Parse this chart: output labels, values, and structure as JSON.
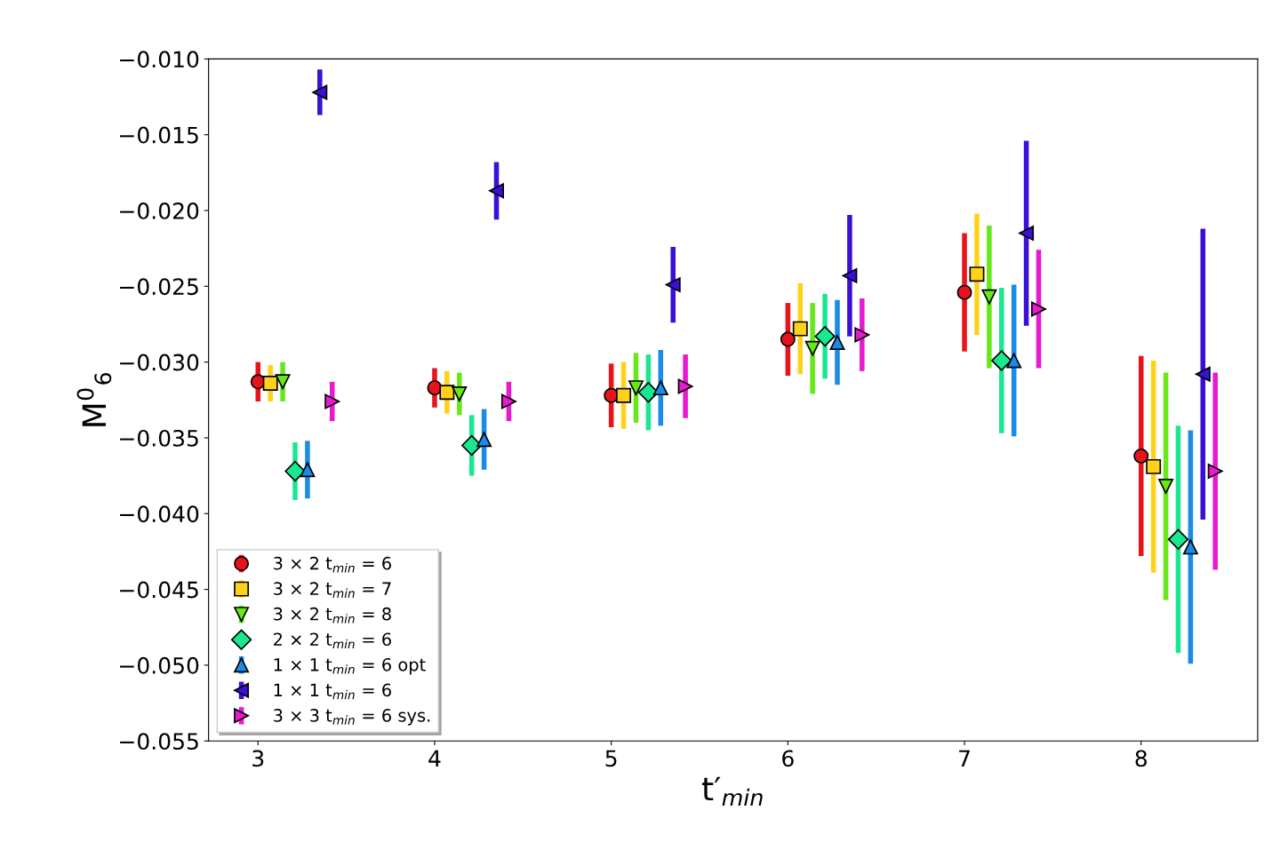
{
  "chart_data": {
    "type": "scatter",
    "xlabel": "t′$_{min}$",
    "ylabel": "M$^{0}$$_{6}$",
    "xlim": [
      2.72,
      8.66
    ],
    "xticks": [
      3,
      4,
      5,
      6,
      7,
      8
    ],
    "ylim": [
      -0.055,
      -0.01
    ],
    "yticks": [
      {
        "value": -0.055,
        "label": "−0.055"
      },
      {
        "value": -0.05,
        "label": "−0.050"
      },
      {
        "value": -0.045,
        "label": "−0.045"
      },
      {
        "value": -0.04,
        "label": "−0.040"
      },
      {
        "value": -0.035,
        "label": "−0.035"
      },
      {
        "value": -0.03,
        "label": "−0.030"
      },
      {
        "value": -0.025,
        "label": "−0.025"
      },
      {
        "value": -0.02,
        "label": "−0.020"
      },
      {
        "value": -0.015,
        "label": "−0.015"
      },
      {
        "value": -0.01,
        "label": "−0.010"
      }
    ],
    "grid": false,
    "legend": "bottom left",
    "series": [
      {
        "name": "3 × 2 t$_{min}$ = 6",
        "color": "#e8141c",
        "marker": "circle",
        "x": [
          3,
          4,
          5,
          6,
          7,
          8
        ],
        "values": [
          -0.0313,
          -0.0317,
          -0.0322,
          -0.0285,
          -0.0254,
          -0.0362
        ],
        "errors": [
          0.0013,
          0.0013,
          0.0021,
          0.0024,
          0.0039,
          0.0066
        ]
      },
      {
        "name": "3 × 2 t$_{min}$ = 7",
        "color": "#ffd21a",
        "marker": "square",
        "x": [
          3.07,
          4.07,
          5.07,
          6.07,
          7.07,
          8.07
        ],
        "values": [
          -0.0314,
          -0.032,
          -0.0322,
          -0.0278,
          -0.0242,
          -0.0369
        ],
        "errors": [
          0.0012,
          0.0014,
          0.0022,
          0.003,
          0.004,
          0.007
        ]
      },
      {
        "name": "3 × 2 t$_{min}$ = 8",
        "color": "#66e81a",
        "marker": "triangle_down",
        "x": [
          3.14,
          4.14,
          5.14,
          6.14,
          7.14,
          8.14
        ],
        "values": [
          -0.0313,
          -0.0321,
          -0.0317,
          -0.0291,
          -0.0257,
          -0.0382
        ],
        "errors": [
          0.0013,
          0.0014,
          0.0023,
          0.003,
          0.0047,
          0.0075
        ]
      },
      {
        "name": "2 × 2 t$_{min}$ = 6",
        "color": "#1ae890",
        "marker": "diamond",
        "x": [
          3.21,
          4.21,
          5.21,
          6.21,
          7.21,
          8.21
        ],
        "values": [
          -0.0372,
          -0.0355,
          -0.032,
          -0.0283,
          -0.0299,
          -0.0417
        ],
        "errors": [
          0.0019,
          0.002,
          0.0025,
          0.0028,
          0.0048,
          0.0075
        ]
      },
      {
        "name": "1 × 1 t$_{min}$ = 6 opt",
        "color": "#1a8ce8",
        "marker": "triangle",
        "x": [
          3.28,
          4.28,
          5.28,
          6.28,
          7.28,
          8.28
        ],
        "values": [
          -0.0371,
          -0.0351,
          -0.0317,
          -0.0287,
          -0.0299,
          -0.0422
        ],
        "errors": [
          0.0019,
          0.002,
          0.0025,
          0.0028,
          0.005,
          0.0077
        ]
      },
      {
        "name": "1 × 1 t$_{min}$ = 6",
        "color": "#3a10d8",
        "marker": "triangle_left",
        "x": [
          3.35,
          4.35,
          5.35,
          6.35,
          7.35,
          8.35
        ],
        "values": [
          -0.0122,
          -0.0187,
          -0.0249,
          -0.0243,
          -0.0215,
          -0.0308
        ],
        "errors": [
          0.0015,
          0.0019,
          0.0025,
          0.004,
          0.0061,
          0.0096
        ]
      },
      {
        "name": "3 × 3 t$_{min}$ = 6 sys.",
        "color": "#e81ad0",
        "marker": "triangle_right",
        "x": [
          3.42,
          4.42,
          5.42,
          6.42,
          7.42,
          8.42
        ],
        "values": [
          -0.0326,
          -0.0326,
          -0.0316,
          -0.0282,
          -0.0265,
          -0.0372
        ],
        "errors": [
          0.0013,
          0.0013,
          0.0021,
          0.0024,
          0.0039,
          0.0065
        ]
      }
    ]
  }
}
